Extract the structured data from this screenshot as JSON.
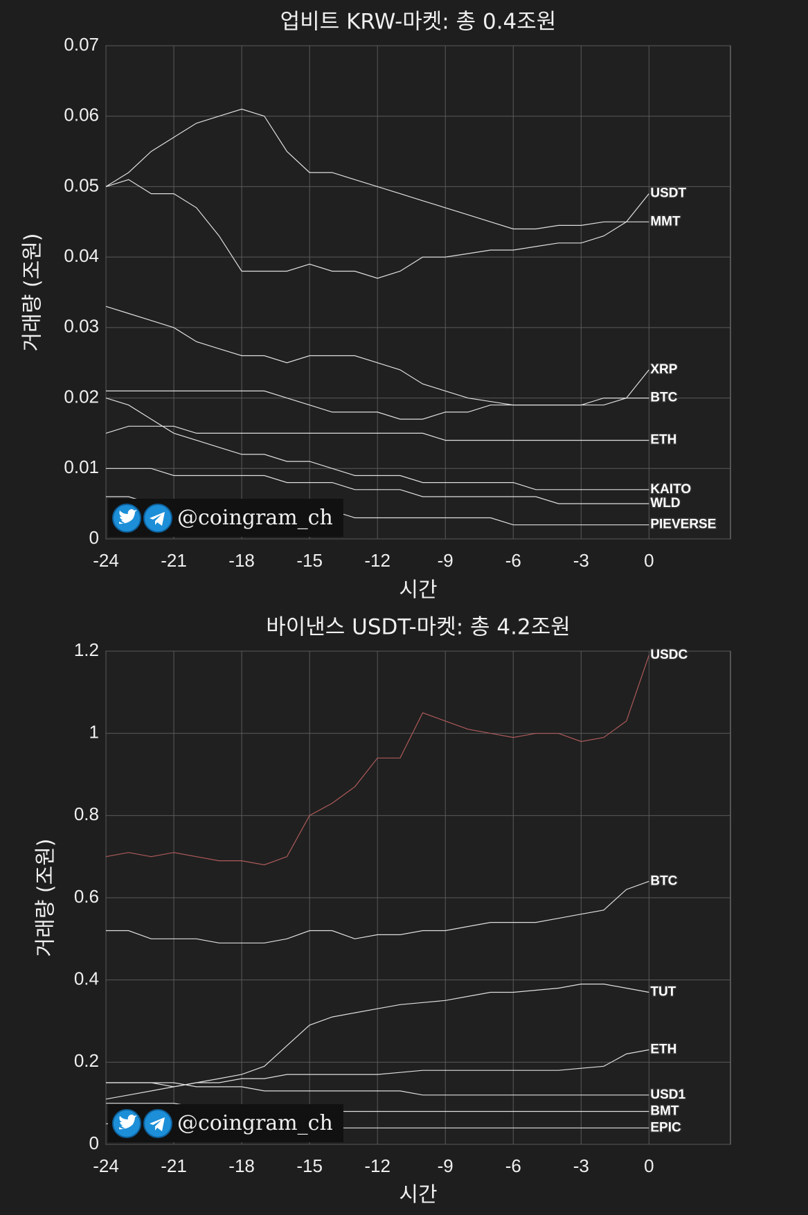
{
  "watermark": "@coingram_ch",
  "chart_data": [
    {
      "type": "line",
      "title": "업비트 KRW-마켓: 총 0.4조원",
      "xlabel": "시간",
      "ylabel": "거래량 (조원)",
      "grid": true,
      "x": [
        -24,
        -23,
        -22,
        -21,
        -20,
        -19,
        -18,
        -17,
        -16,
        -15,
        -14,
        -13,
        -12,
        -11,
        -10,
        -9,
        -8,
        -7,
        -6,
        -5,
        -4,
        -3,
        -2,
        -1,
        0
      ],
      "xlim": [
        -24,
        3.6
      ],
      "xticks": [
        -24,
        -21,
        -18,
        -15,
        -12,
        -9,
        -6,
        -3,
        0
      ],
      "ylim": [
        0,
        0.07
      ],
      "yticks": [
        0,
        0.01,
        0.02,
        0.03,
        0.04,
        0.05,
        0.06,
        0.07
      ],
      "series": [
        {
          "name": "USDT",
          "color": "#e0e0e0",
          "values": [
            0.05,
            0.051,
            0.049,
            0.049,
            0.047,
            0.043,
            0.038,
            0.038,
            0.038,
            0.039,
            0.038,
            0.038,
            0.037,
            0.038,
            0.04,
            0.04,
            0.0405,
            0.041,
            0.041,
            0.0415,
            0.042,
            0.042,
            0.043,
            0.045,
            0.049
          ]
        },
        {
          "name": "MMT",
          "color": "#e0e0e0",
          "values": [
            0.05,
            0.052,
            0.055,
            0.057,
            0.059,
            0.06,
            0.061,
            0.06,
            0.055,
            0.052,
            0.052,
            0.051,
            0.05,
            0.049,
            0.048,
            0.047,
            0.046,
            0.045,
            0.044,
            0.044,
            0.0445,
            0.0445,
            0.045,
            0.045,
            0.045
          ]
        },
        {
          "name": "XRP",
          "color": "#e0e0e0",
          "values": [
            0.033,
            0.032,
            0.031,
            0.03,
            0.028,
            0.027,
            0.026,
            0.026,
            0.025,
            0.026,
            0.026,
            0.026,
            0.025,
            0.024,
            0.022,
            0.021,
            0.02,
            0.0195,
            0.019,
            0.019,
            0.019,
            0.019,
            0.019,
            0.02,
            0.024
          ]
        },
        {
          "name": "BTC",
          "color": "#e0e0e0",
          "values": [
            0.021,
            0.021,
            0.021,
            0.021,
            0.021,
            0.021,
            0.021,
            0.021,
            0.02,
            0.019,
            0.018,
            0.018,
            0.018,
            0.017,
            0.017,
            0.018,
            0.018,
            0.019,
            0.019,
            0.019,
            0.019,
            0.019,
            0.02,
            0.02,
            0.02
          ]
        },
        {
          "name": "ETH",
          "color": "#e0e0e0",
          "values": [
            0.015,
            0.016,
            0.016,
            0.016,
            0.015,
            0.015,
            0.015,
            0.015,
            0.015,
            0.015,
            0.015,
            0.015,
            0.015,
            0.015,
            0.015,
            0.014,
            0.014,
            0.014,
            0.014,
            0.014,
            0.014,
            0.014,
            0.014,
            0.014,
            0.014
          ]
        },
        {
          "name": "KAITO",
          "color": "#e0e0e0",
          "values": [
            0.02,
            0.019,
            0.017,
            0.015,
            0.014,
            0.013,
            0.012,
            0.012,
            0.011,
            0.011,
            0.01,
            0.009,
            0.009,
            0.009,
            0.008,
            0.008,
            0.008,
            0.008,
            0.008,
            0.007,
            0.007,
            0.007,
            0.007,
            0.007,
            0.007
          ]
        },
        {
          "name": "WLD",
          "color": "#e0e0e0",
          "values": [
            0.01,
            0.01,
            0.01,
            0.009,
            0.009,
            0.009,
            0.009,
            0.009,
            0.008,
            0.008,
            0.008,
            0.007,
            0.007,
            0.007,
            0.006,
            0.006,
            0.006,
            0.006,
            0.006,
            0.006,
            0.005,
            0.005,
            0.005,
            0.005,
            0.005
          ]
        },
        {
          "name": "PIEVERSE",
          "color": "#e0e0e0",
          "values": [
            0.006,
            0.006,
            0.005,
            0.005,
            0.005,
            0.005,
            0.004,
            0.004,
            0.004,
            0.004,
            0.004,
            0.003,
            0.003,
            0.003,
            0.003,
            0.003,
            0.003,
            0.003,
            0.002,
            0.002,
            0.002,
            0.002,
            0.002,
            0.002,
            0.002
          ]
        }
      ]
    },
    {
      "type": "line",
      "title": "바이낸스 USDT-마켓: 총 4.2조원",
      "xlabel": "시간",
      "ylabel": "거래량 (조원)",
      "grid": true,
      "x": [
        -24,
        -23,
        -22,
        -21,
        -20,
        -19,
        -18,
        -17,
        -16,
        -15,
        -14,
        -13,
        -12,
        -11,
        -10,
        -9,
        -8,
        -7,
        -6,
        -5,
        -4,
        -3,
        -2,
        -1,
        0
      ],
      "xlim": [
        -24,
        3.6
      ],
      "xticks": [
        -24,
        -21,
        -18,
        -15,
        -12,
        -9,
        -6,
        -3,
        0
      ],
      "ylim": [
        0,
        1.2
      ],
      "yticks": [
        0,
        0.2,
        0.4,
        0.6,
        0.8,
        1,
        1.2
      ],
      "series": [
        {
          "name": "USDC",
          "color": "#b05a5a",
          "values": [
            0.7,
            0.71,
            0.7,
            0.71,
            0.7,
            0.69,
            0.69,
            0.68,
            0.7,
            0.8,
            0.83,
            0.87,
            0.94,
            0.94,
            1.05,
            1.03,
            1.01,
            1.0,
            0.99,
            1.0,
            1.0,
            0.98,
            0.99,
            1.03,
            1.19
          ]
        },
        {
          "name": "BTC",
          "color": "#e0e0e0",
          "values": [
            0.52,
            0.52,
            0.5,
            0.5,
            0.5,
            0.49,
            0.49,
            0.49,
            0.5,
            0.52,
            0.52,
            0.5,
            0.51,
            0.51,
            0.52,
            0.52,
            0.53,
            0.54,
            0.54,
            0.54,
            0.55,
            0.56,
            0.57,
            0.62,
            0.64
          ]
        },
        {
          "name": "TUT",
          "color": "#e0e0e0",
          "values": [
            0.11,
            0.12,
            0.13,
            0.14,
            0.15,
            0.16,
            0.17,
            0.19,
            0.24,
            0.29,
            0.31,
            0.32,
            0.33,
            0.34,
            0.345,
            0.35,
            0.36,
            0.37,
            0.37,
            0.375,
            0.38,
            0.39,
            0.39,
            0.38,
            0.37
          ]
        },
        {
          "name": "ETH",
          "color": "#e0e0e0",
          "values": [
            0.15,
            0.15,
            0.15,
            0.14,
            0.15,
            0.15,
            0.16,
            0.16,
            0.17,
            0.17,
            0.17,
            0.17,
            0.17,
            0.175,
            0.18,
            0.18,
            0.18,
            0.18,
            0.18,
            0.18,
            0.18,
            0.185,
            0.19,
            0.22,
            0.23
          ]
        },
        {
          "name": "USD1",
          "color": "#e0e0e0",
          "values": [
            0.15,
            0.15,
            0.15,
            0.15,
            0.14,
            0.14,
            0.14,
            0.13,
            0.13,
            0.13,
            0.13,
            0.13,
            0.13,
            0.13,
            0.12,
            0.12,
            0.12,
            0.12,
            0.12,
            0.12,
            0.12,
            0.12,
            0.12,
            0.12,
            0.12
          ]
        },
        {
          "name": "BMT",
          "color": "#e0e0e0",
          "values": [
            0.1,
            0.1,
            0.1,
            0.1,
            0.09,
            0.09,
            0.09,
            0.09,
            0.09,
            0.09,
            0.08,
            0.08,
            0.08,
            0.08,
            0.08,
            0.08,
            0.08,
            0.08,
            0.08,
            0.08,
            0.08,
            0.08,
            0.08,
            0.08,
            0.08
          ]
        },
        {
          "name": "EPIC",
          "color": "#e0e0e0",
          "values": [
            0.05,
            0.05,
            0.05,
            0.05,
            0.05,
            0.05,
            0.05,
            0.05,
            0.04,
            0.04,
            0.04,
            0.04,
            0.04,
            0.04,
            0.04,
            0.04,
            0.04,
            0.04,
            0.04,
            0.04,
            0.04,
            0.04,
            0.04,
            0.04,
            0.04
          ]
        }
      ]
    }
  ]
}
